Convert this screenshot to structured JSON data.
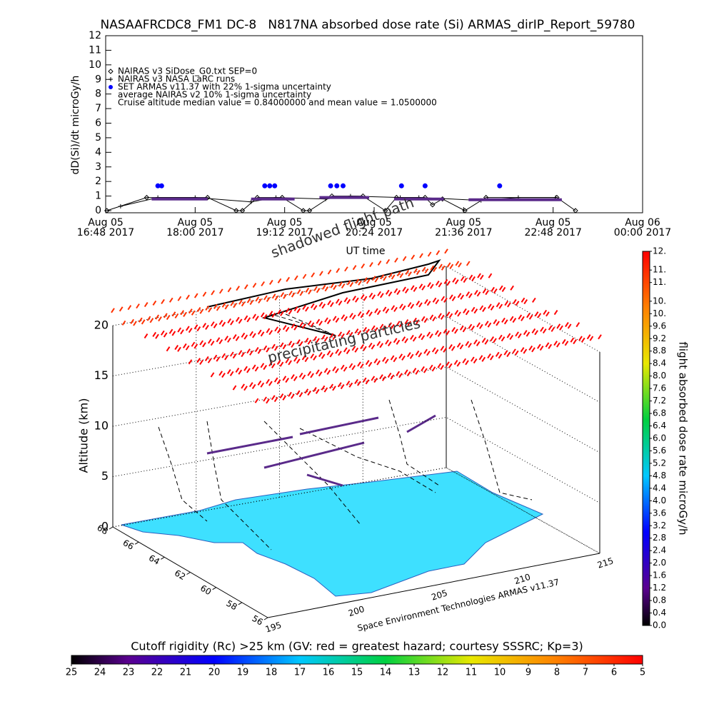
{
  "chart_data": [
    {
      "type": "line",
      "title": "NASAAFRCDC8_FM1 DC-8   N817NA absorbed dose rate (Si) ARMAS_dirIP_Report_59780",
      "ylabel": "dD(Si)/dt microGy/h",
      "xlabel": "UT time",
      "annotation": "Cruise altitude median value = 0.84000000 and mean value = 1.0500000",
      "xlim": [
        "2017-08-05T16:48",
        "2017-08-06T00:00"
      ],
      "xticks": [
        {
          "value": "2017-08-05T16:48",
          "label": "Aug 05\n16:48 2017"
        },
        {
          "value": "2017-08-05T18:00",
          "label": "Aug 05\n18:00 2017"
        },
        {
          "value": "2017-08-05T19:12",
          "label": "Aug 05\n19:12 2017"
        },
        {
          "value": "2017-08-05T20:24",
          "label": "Aug 05\n20:24 2017"
        },
        {
          "value": "2017-08-05T21:36",
          "label": "Aug 05\n21:36 2017"
        },
        {
          "value": "2017-08-05T22:48",
          "label": "Aug 05\n22:48 2017"
        },
        {
          "value": "2017-08-06T00:00",
          "label": "Aug 06\n00:00 2017"
        }
      ],
      "ylim": [
        0,
        12
      ],
      "yticks": [
        0,
        1,
        2,
        3,
        4,
        5,
        6,
        7,
        8,
        9,
        10,
        11,
        12
      ],
      "series": [
        {
          "name": "NAIRAS v3 SiDose_G0.txt SEP=0",
          "color": "#000000",
          "marker": "diamond",
          "line": true,
          "x": [
            "2017-08-05T16:49",
            "2017-08-05T17:21",
            "2017-08-05T18:10",
            "2017-08-05T18:33",
            "2017-08-05T18:38",
            "2017-08-05T18:50",
            "2017-08-05T19:10",
            "2017-08-05T19:27",
            "2017-08-05T19:32",
            "2017-08-05T19:50",
            "2017-08-05T20:15",
            "2017-08-05T20:33",
            "2017-08-05T20:42",
            "2017-08-05T21:05",
            "2017-08-05T21:11",
            "2017-08-05T21:19",
            "2017-08-05T21:37",
            "2017-08-05T21:54",
            "2017-08-05T22:51",
            "2017-08-05T23:06"
          ],
          "values": [
            0,
            0.9,
            0.9,
            0,
            0,
            0.9,
            0.9,
            0,
            0,
            1.0,
            1.0,
            0,
            0.9,
            0.9,
            0.4,
            0.8,
            0,
            0.9,
            0.9,
            0
          ]
        },
        {
          "name": "NAIRAS v3 NASA LaRC runs",
          "color": "#000000",
          "marker": "plus",
          "line": true,
          "x": [
            "2017-08-05T17:00",
            "2017-08-05T17:30",
            "2017-08-05T18:00",
            "2017-08-05T18:45",
            "2017-08-05T19:05",
            "2017-08-05T19:45",
            "2017-08-05T20:05",
            "2017-08-05T20:45",
            "2017-08-05T21:00",
            "2017-08-05T21:50",
            "2017-08-05T22:20",
            "2017-08-05T22:50"
          ],
          "values": [
            0.3,
            0.9,
            0.9,
            0.6,
            0.9,
            0.8,
            1.0,
            0.9,
            0.9,
            0.7,
            0.9,
            0.9
          ]
        },
        {
          "name": "SET ARMAS v11.37 with 22% 1-sigma uncertainty",
          "color": "#0000ff",
          "marker": "circle",
          "line": false,
          "x": [
            "2017-08-05T17:30",
            "2017-08-05T17:33",
            "2017-08-05T18:56",
            "2017-08-05T19:00",
            "2017-08-05T19:04",
            "2017-08-05T19:49",
            "2017-08-05T19:54",
            "2017-08-05T19:59",
            "2017-08-05T20:46",
            "2017-08-05T21:05",
            "2017-08-05T22:05"
          ],
          "values": [
            1.7,
            1.7,
            1.7,
            1.7,
            1.7,
            1.7,
            1.7,
            1.7,
            1.7,
            1.7,
            1.7
          ]
        },
        {
          "name": "average NAIRAS v2 10% 1-sigma uncertainty",
          "color": "#5a2a8a",
          "marker": "none",
          "line": true,
          "x": [
            "2017-08-05T17:25",
            "2017-08-05T18:10",
            "2017-08-05T18:30",
            "2017-08-05T18:45",
            "2017-08-05T19:20",
            "2017-08-05T19:30",
            "2017-08-05T19:40",
            "2017-08-05T20:20",
            "2017-08-05T20:30",
            "2017-08-05T20:40",
            "2017-08-05T21:20",
            "2017-08-05T21:30",
            "2017-08-05T21:40",
            "2017-08-05T22:55"
          ],
          "values": [
            0.8,
            0.8,
            null,
            0.8,
            0.8,
            null,
            0.9,
            0.9,
            null,
            0.8,
            0.8,
            null,
            0.75,
            0.75
          ]
        }
      ]
    },
    {
      "type": "surface3d",
      "zlabel": "Altitude (km)",
      "zlim": [
        0,
        20
      ],
      "zticks": [
        0,
        5,
        10,
        15,
        20
      ],
      "latlim": [
        68,
        56
      ],
      "latticks": [
        68,
        66,
        64,
        62,
        60,
        58,
        56
      ],
      "lonlim": [
        195,
        215
      ],
      "lonticks": [
        195,
        200,
        205,
        210,
        215
      ],
      "annotations": [
        "shadowed flight path",
        "precipitating particles"
      ],
      "credit": "Space Environment Technologies ARMAS v11.37"
    },
    {
      "type": "colorbar",
      "label": "flight absorbed dose rate microGy/h",
      "ylim": [
        0,
        12
      ],
      "yticks": [
        {
          "value": 0,
          "label": "0.0"
        },
        0.4,
        0.8,
        1.2,
        1.6,
        {
          "value": 2,
          "label": "2.0"
        },
        2.4,
        2.8,
        3.2,
        3.6,
        {
          "value": 4,
          "label": "4.0"
        },
        4.4,
        4.8,
        5.2,
        5.6,
        {
          "value": 6,
          "label": "6.0"
        },
        6.4,
        6.8,
        7.2,
        7.6,
        {
          "value": 8,
          "label": "8.0"
        },
        8.4,
        8.8,
        9.2,
        9.6,
        {
          "value": 10,
          "label": "10."
        },
        {
          "value": 10.4,
          "label": "10."
        },
        {
          "value": 11,
          "label": "11."
        },
        {
          "value": 11.4,
          "label": "11."
        },
        {
          "value": 12,
          "label": "12."
        }
      ]
    },
    {
      "type": "colorbar",
      "title": "Cutoff rigidity (Rc) >25 km (GV: red = greatest hazard; courtesy SSSRC; Kp=3)",
      "xlim": [
        25,
        5
      ],
      "xticks": [
        25,
        24,
        23,
        22,
        21,
        20,
        19,
        18,
        17,
        16,
        15,
        14,
        13,
        12,
        11,
        10,
        9,
        8,
        7,
        6,
        5
      ]
    }
  ]
}
